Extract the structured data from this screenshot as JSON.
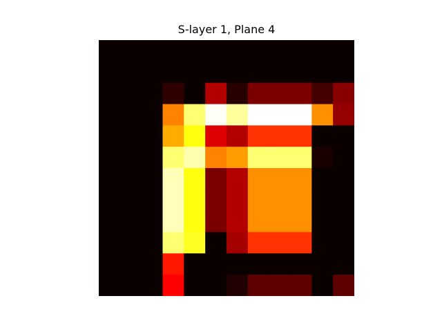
{
  "chart_data": {
    "type": "heatmap",
    "title": "S-layer 1, Plane 4",
    "colormap": "hot",
    "value_range": [
      0,
      1
    ],
    "axes_visible": false,
    "rows": 12,
    "cols": 12,
    "values": [
      [
        0,
        0,
        0,
        0,
        0,
        0,
        0,
        0,
        0,
        0,
        0,
        0
      ],
      [
        0,
        0,
        0,
        0,
        0,
        0,
        0,
        0,
        0,
        0,
        0,
        0
      ],
      [
        0,
        0,
        0,
        0.05,
        0,
        0.24,
        0.04,
        0.16,
        0.16,
        0.16,
        0.08,
        0.18
      ],
      [
        0,
        0,
        0,
        0.56,
        0.86,
        0.99,
        0.9,
        1.0,
        1.0,
        1.0,
        0.58,
        0.2
      ],
      [
        0,
        0,
        0,
        0.62,
        0.76,
        0.3,
        0.24,
        0.44,
        0.44,
        0.44,
        0,
        0
      ],
      [
        0,
        0,
        0,
        0.86,
        0.92,
        0.56,
        0.6,
        0.86,
        0.86,
        0.86,
        0.02,
        0
      ],
      [
        0,
        0,
        0,
        0.93,
        0.76,
        0.16,
        0.24,
        0.58,
        0.58,
        0.58,
        0,
        0
      ],
      [
        0,
        0,
        0,
        0.93,
        0.76,
        0.16,
        0.24,
        0.58,
        0.58,
        0.58,
        0,
        0
      ],
      [
        0,
        0,
        0,
        0.93,
        0.76,
        0.16,
        0.24,
        0.58,
        0.58,
        0.58,
        0,
        0
      ],
      [
        0,
        0,
        0,
        0.86,
        0.78,
        0,
        0.22,
        0.44,
        0.44,
        0.44,
        0,
        0
      ],
      [
        0,
        0,
        0,
        0.4,
        0,
        0,
        0,
        0,
        0,
        0,
        0,
        0
      ],
      [
        0,
        0,
        0,
        0.36,
        0,
        0,
        0.03,
        0.12,
        0.12,
        0.12,
        0,
        0.12
      ]
    ]
  }
}
